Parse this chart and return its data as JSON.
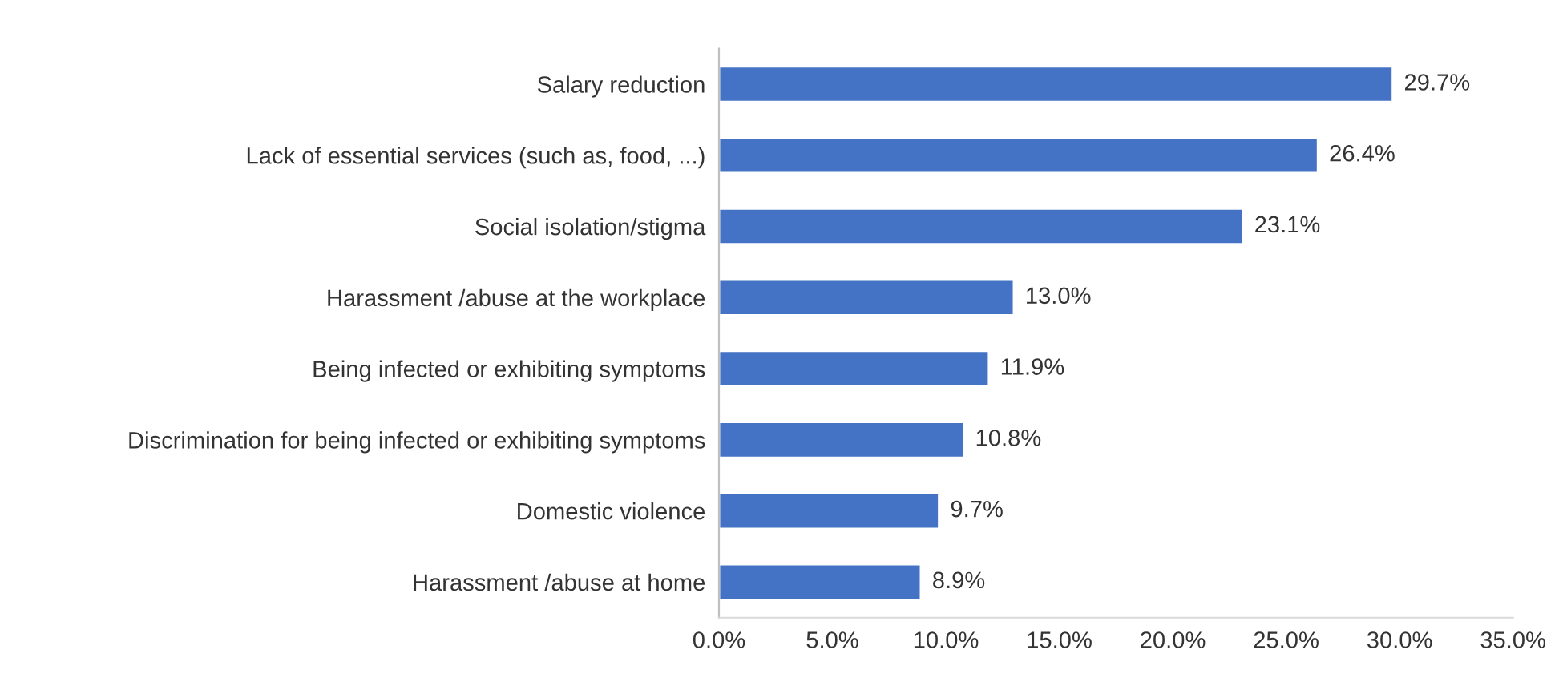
{
  "chart_data": {
    "type": "bar",
    "orientation": "horizontal",
    "categories": [
      "Salary reduction",
      "Lack of essential services (such as, food, ...)",
      "Social isolation/stigma",
      "Harassment /abuse at the workplace",
      "Being infected or exhibiting symptoms",
      "Discrimination for being infected or exhibiting symptoms",
      "Domestic violence",
      "Harassment /abuse at home"
    ],
    "values": [
      29.7,
      26.4,
      23.1,
      13.0,
      11.9,
      10.8,
      9.7,
      8.9
    ],
    "value_labels": [
      "29.7%",
      "26.4%",
      "23.1%",
      "13.0%",
      "11.9%",
      "10.8%",
      "9.7%",
      "8.9%"
    ],
    "color": "#4472c4",
    "xlim": [
      0,
      35
    ],
    "xticks": [
      {
        "value": 0,
        "label": "0.0%"
      },
      {
        "value": 5,
        "label": "5.0%"
      },
      {
        "value": 10,
        "label": "10.0%"
      },
      {
        "value": 15,
        "label": "15.0%"
      },
      {
        "value": 20,
        "label": "20.0%"
      },
      {
        "value": 25,
        "label": "25.0%"
      },
      {
        "value": 30,
        "label": "30.0%"
      },
      {
        "value": 35,
        "label": "35.0%"
      }
    ],
    "grid": false
  }
}
